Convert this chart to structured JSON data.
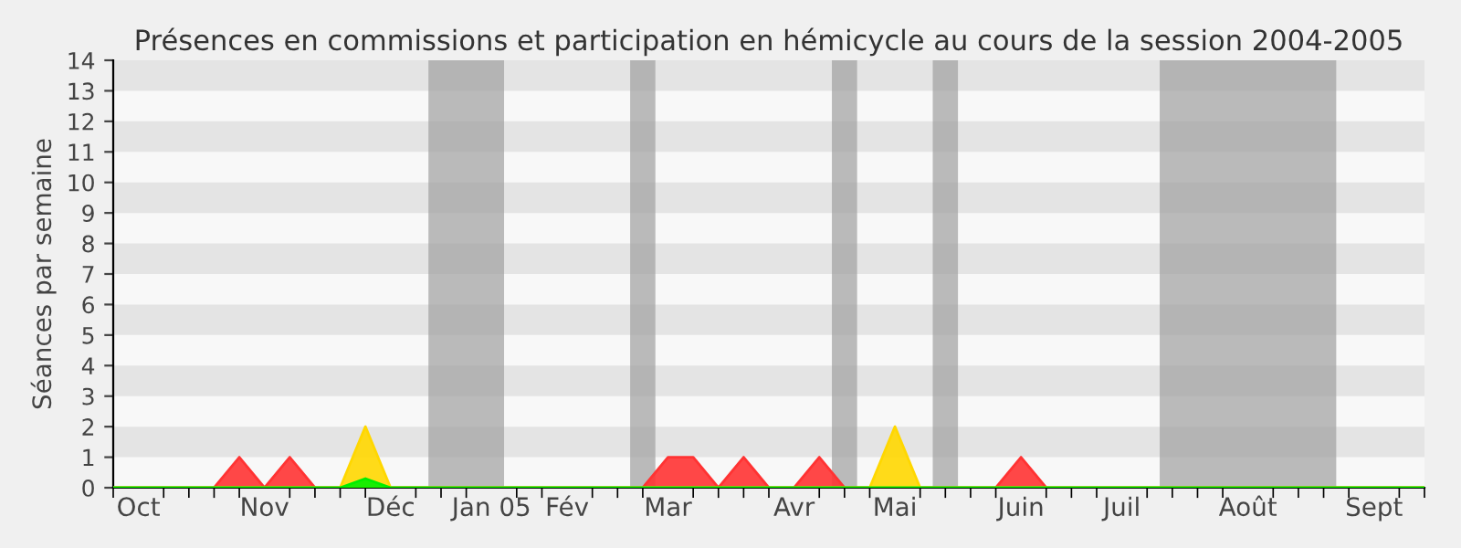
{
  "chart_data": {
    "type": "area",
    "title": "Présences en commissions et participation en hémicycle au cours de la session 2004-2005",
    "ylabel": "Séances par semaine",
    "categories": [
      null,
      "Oct",
      null,
      null,
      null,
      null,
      "Nov",
      null,
      null,
      null,
      null,
      "Déc",
      null,
      null,
      null,
      "Jan 05",
      null,
      null,
      "Fév",
      null,
      null,
      null,
      "Mar",
      null,
      null,
      null,
      null,
      "Avr",
      null,
      null,
      null,
      "Mai",
      null,
      null,
      null,
      null,
      "Juin",
      null,
      null,
      null,
      "Juil",
      null,
      null,
      null,
      null,
      "Août",
      null,
      null,
      null,
      null,
      "Sept",
      null,
      null
    ],
    "series": [
      {
        "color": "#ff3333",
        "values": [
          0,
          0,
          0,
          0,
          0,
          1,
          0,
          1,
          0,
          0,
          0,
          0,
          0,
          0,
          0,
          0,
          0,
          0,
          0,
          0,
          0,
          0,
          1,
          1,
          0,
          1,
          0,
          0,
          1,
          0,
          0,
          0,
          0,
          0,
          0,
          0,
          1,
          0,
          0,
          0,
          0,
          0,
          0,
          0,
          0,
          0,
          0,
          0,
          0,
          0,
          0,
          0,
          0
        ]
      },
      {
        "color": "#ffd700",
        "values": [
          0,
          0,
          0,
          0,
          0,
          0,
          0,
          0,
          0,
          0,
          2,
          0,
          0,
          0,
          0,
          0,
          0,
          0,
          0,
          0,
          0,
          0,
          0,
          0,
          0,
          0,
          0,
          0,
          0,
          0,
          0,
          2,
          0,
          0,
          0,
          0,
          0,
          0,
          0,
          0,
          0,
          0,
          0,
          0,
          0,
          0,
          0,
          0,
          0,
          0,
          0,
          0,
          0
        ]
      },
      {
        "color": "#00ee00",
        "values": [
          0,
          0,
          0,
          0,
          0,
          0,
          0,
          0,
          0,
          0,
          0.3,
          0,
          0,
          0,
          0,
          0,
          0,
          0,
          0,
          0,
          0,
          0,
          0,
          0,
          0,
          0,
          0,
          0,
          0,
          0,
          0,
          0,
          0,
          0,
          0,
          0,
          0,
          0,
          0,
          0,
          0,
          0,
          0,
          0,
          0,
          0,
          0,
          0,
          0,
          0,
          0,
          0,
          0
        ]
      }
    ],
    "ylim": [
      0,
      14
    ],
    "yticks": [
      0,
      1,
      2,
      3,
      4,
      5,
      6,
      7,
      8,
      9,
      10,
      11,
      12,
      13,
      14
    ],
    "legend": false
  }
}
